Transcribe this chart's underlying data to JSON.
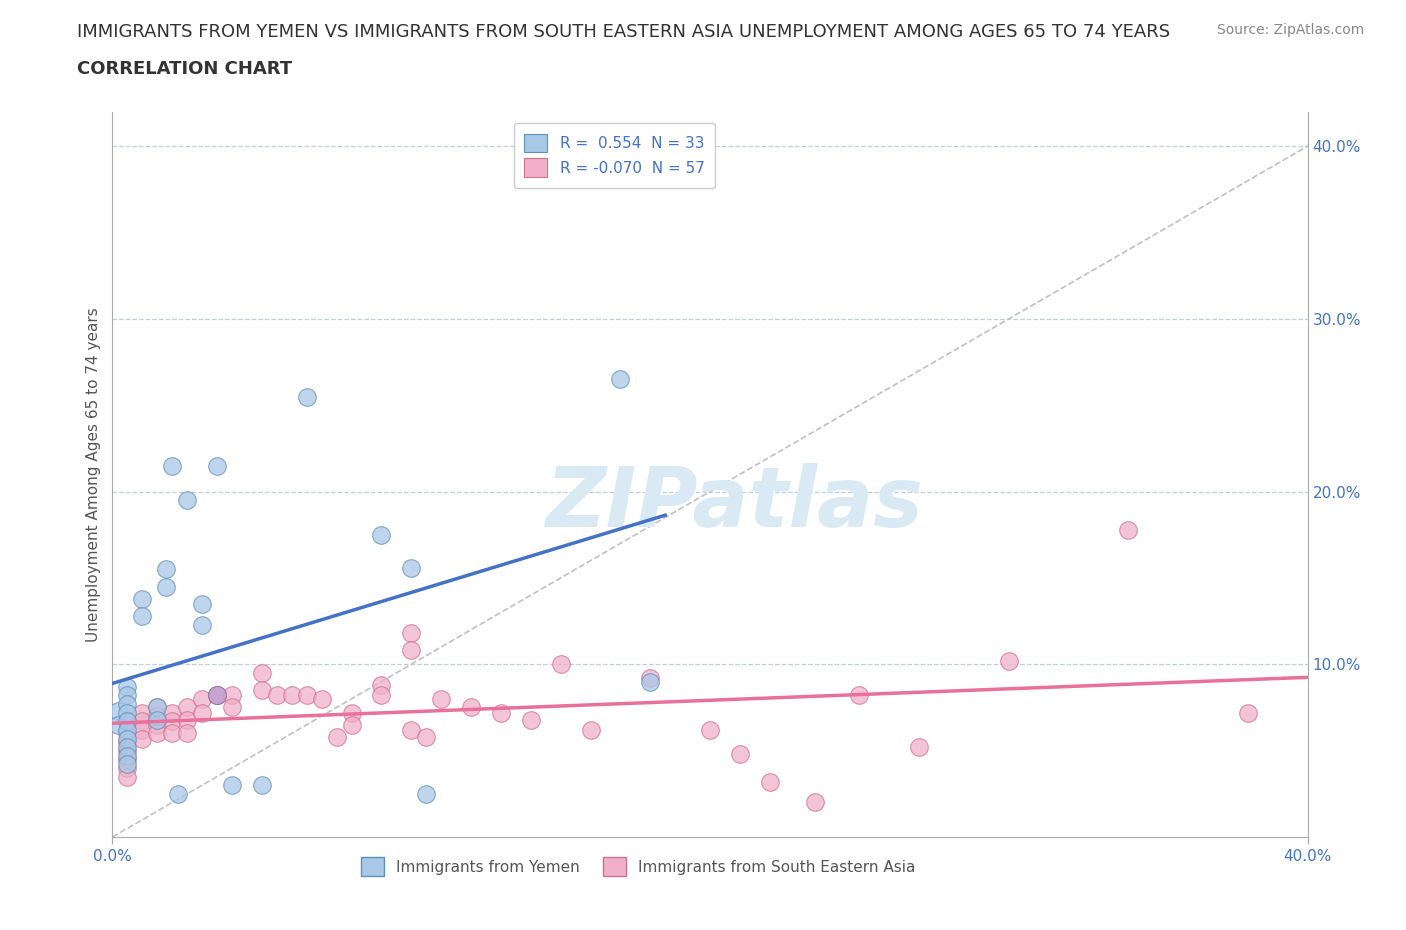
{
  "title_line1": "IMMIGRANTS FROM YEMEN VS IMMIGRANTS FROM SOUTH EASTERN ASIA UNEMPLOYMENT AMONG AGES 65 TO 74 YEARS",
  "title_line2": "CORRELATION CHART",
  "source_text": "Source: ZipAtlas.com",
  "ylabel": "Unemployment Among Ages 65 to 74 years",
  "xlim": [
    0.0,
    0.4
  ],
  "ylim": [
    0.0,
    0.42
  ],
  "xtick_positions": [
    0.0,
    0.4
  ],
  "xtick_labels": [
    "0.0%",
    "40.0%"
  ],
  "ytick_positions_left": [],
  "ytick_positions_right": [
    0.0,
    0.1,
    0.2,
    0.3,
    0.4
  ],
  "ytick_labels_right": [
    "",
    "10.0%",
    "20.0%",
    "30.0%",
    "40.0%"
  ],
  "grid_yticks": [
    0.1,
    0.2,
    0.3,
    0.4
  ],
  "diag_line_color": "#c0c0c0",
  "blue_line_color": "#4472c4",
  "pink_line_color": "#e8709a",
  "watermark_text": "ZIPatlas",
  "watermark_color": "#daeaf5",
  "background_color": "#ffffff",
  "grid_color": "#c0d0e0",
  "blue_scatter_color": "#a8c8e8",
  "pink_scatter_color": "#f0b0c8",
  "blue_scatter_edge": "#6090b8",
  "pink_scatter_edge": "#d07090",
  "blue_points": [
    [
      0.002,
      0.073
    ],
    [
      0.002,
      0.065
    ],
    [
      0.005,
      0.087
    ],
    [
      0.005,
      0.082
    ],
    [
      0.005,
      0.077
    ],
    [
      0.005,
      0.072
    ],
    [
      0.005,
      0.067
    ],
    [
      0.005,
      0.062
    ],
    [
      0.005,
      0.057
    ],
    [
      0.005,
      0.052
    ],
    [
      0.005,
      0.047
    ],
    [
      0.005,
      0.042
    ],
    [
      0.01,
      0.138
    ],
    [
      0.01,
      0.128
    ],
    [
      0.015,
      0.075
    ],
    [
      0.015,
      0.068
    ],
    [
      0.018,
      0.155
    ],
    [
      0.018,
      0.145
    ],
    [
      0.02,
      0.215
    ],
    [
      0.022,
      0.025
    ],
    [
      0.025,
      0.195
    ],
    [
      0.03,
      0.135
    ],
    [
      0.03,
      0.123
    ],
    [
      0.035,
      0.215
    ],
    [
      0.04,
      0.03
    ],
    [
      0.05,
      0.03
    ],
    [
      0.065,
      0.255
    ],
    [
      0.09,
      0.175
    ],
    [
      0.1,
      0.156
    ],
    [
      0.105,
      0.025
    ],
    [
      0.17,
      0.265
    ],
    [
      0.18,
      0.09
    ]
  ],
  "pink_points": [
    [
      0.005,
      0.068
    ],
    [
      0.005,
      0.06
    ],
    [
      0.005,
      0.055
    ],
    [
      0.005,
      0.05
    ],
    [
      0.005,
      0.045
    ],
    [
      0.005,
      0.04
    ],
    [
      0.005,
      0.035
    ],
    [
      0.01,
      0.072
    ],
    [
      0.01,
      0.067
    ],
    [
      0.01,
      0.062
    ],
    [
      0.01,
      0.057
    ],
    [
      0.015,
      0.075
    ],
    [
      0.015,
      0.07
    ],
    [
      0.015,
      0.065
    ],
    [
      0.015,
      0.06
    ],
    [
      0.02,
      0.072
    ],
    [
      0.02,
      0.067
    ],
    [
      0.02,
      0.06
    ],
    [
      0.025,
      0.075
    ],
    [
      0.025,
      0.068
    ],
    [
      0.025,
      0.06
    ],
    [
      0.03,
      0.08
    ],
    [
      0.03,
      0.072
    ],
    [
      0.035,
      0.082
    ],
    [
      0.04,
      0.082
    ],
    [
      0.04,
      0.075
    ],
    [
      0.05,
      0.095
    ],
    [
      0.05,
      0.085
    ],
    [
      0.055,
      0.082
    ],
    [
      0.06,
      0.082
    ],
    [
      0.065,
      0.082
    ],
    [
      0.07,
      0.08
    ],
    [
      0.075,
      0.058
    ],
    [
      0.08,
      0.072
    ],
    [
      0.08,
      0.065
    ],
    [
      0.09,
      0.088
    ],
    [
      0.09,
      0.082
    ],
    [
      0.1,
      0.118
    ],
    [
      0.1,
      0.108
    ],
    [
      0.1,
      0.062
    ],
    [
      0.105,
      0.058
    ],
    [
      0.11,
      0.08
    ],
    [
      0.12,
      0.075
    ],
    [
      0.13,
      0.072
    ],
    [
      0.14,
      0.068
    ],
    [
      0.15,
      0.1
    ],
    [
      0.16,
      0.062
    ],
    [
      0.18,
      0.092
    ],
    [
      0.2,
      0.062
    ],
    [
      0.21,
      0.048
    ],
    [
      0.22,
      0.032
    ],
    [
      0.235,
      0.02
    ],
    [
      0.25,
      0.082
    ],
    [
      0.27,
      0.052
    ],
    [
      0.3,
      0.102
    ],
    [
      0.34,
      0.178
    ],
    [
      0.38,
      0.072
    ]
  ],
  "purple_points": [
    [
      0.035,
      0.082
    ]
  ],
  "blue_R": 0.554,
  "blue_N": 33,
  "pink_R": -0.07,
  "pink_N": 57,
  "title_fontsize": 13,
  "axis_label_fontsize": 11,
  "tick_fontsize": 11,
  "legend_fontsize": 11,
  "source_fontsize": 10
}
